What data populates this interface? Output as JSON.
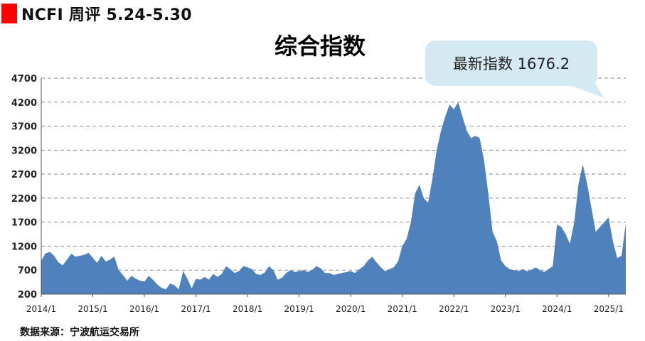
{
  "header": {
    "title": "NCFI 周评 5.24-5.30"
  },
  "callout": {
    "text": "最新指数 1676.2"
  },
  "source": "数据来源：宁波航运交易所",
  "colors": {
    "area": "#4f81bd",
    "marker": "#ff0000",
    "callout_bg": "#d5e9f3",
    "grid": "#888888"
  },
  "chart_data": {
    "type": "area",
    "title": "综合指数",
    "xlabel": "",
    "ylabel": "",
    "ylim": [
      200,
      4700
    ],
    "yticks": [
      200,
      700,
      1200,
      1700,
      2200,
      2700,
      3200,
      3700,
      4200,
      4700
    ],
    "xticks": [
      "2014/1",
      "2015/1",
      "2016/1",
      "2017/1",
      "2018/1",
      "2019/1",
      "2020/1",
      "2021/1",
      "2022/1",
      "2023/1",
      "2024/1",
      "2025/1"
    ],
    "grid": "horizontal dashed",
    "x_range": [
      "2014/1",
      "2025/5"
    ],
    "series": [
      {
        "values": [
          [
            "2014/1",
            900
          ],
          [
            "2014/2",
            1050
          ],
          [
            "2014/3",
            1080
          ],
          [
            "2014/4",
            1000
          ],
          [
            "2014/5",
            860
          ],
          [
            "2014/6",
            800
          ],
          [
            "2014/7",
            920
          ],
          [
            "2014/8",
            1040
          ],
          [
            "2014/9",
            980
          ],
          [
            "2014/10",
            1000
          ],
          [
            "2014/11",
            1020
          ],
          [
            "2014/12",
            1060
          ],
          [
            "2015/1",
            960
          ],
          [
            "2015/2",
            850
          ],
          [
            "2015/3",
            1000
          ],
          [
            "2015/4",
            880
          ],
          [
            "2015/5",
            920
          ],
          [
            "2015/6",
            980
          ],
          [
            "2015/7",
            700
          ],
          [
            "2015/8",
            600
          ],
          [
            "2015/9",
            480
          ],
          [
            "2015/10",
            580
          ],
          [
            "2015/11",
            520
          ],
          [
            "2015/12",
            480
          ],
          [
            "2016/1",
            460
          ],
          [
            "2016/2",
            580
          ],
          [
            "2016/3",
            500
          ],
          [
            "2016/4",
            400
          ],
          [
            "2016/5",
            330
          ],
          [
            "2016/6",
            300
          ],
          [
            "2016/7",
            420
          ],
          [
            "2016/8",
            380
          ],
          [
            "2016/9",
            300
          ],
          [
            "2016/10",
            680
          ],
          [
            "2016/11",
            520
          ],
          [
            "2016/12",
            320
          ],
          [
            "2017/1",
            520
          ],
          [
            "2017/2",
            500
          ],
          [
            "2017/3",
            560
          ],
          [
            "2017/4",
            500
          ],
          [
            "2017/5",
            620
          ],
          [
            "2017/6",
            560
          ],
          [
            "2017/7",
            620
          ],
          [
            "2017/8",
            780
          ],
          [
            "2017/9",
            720
          ],
          [
            "2017/10",
            640
          ],
          [
            "2017/11",
            680
          ],
          [
            "2017/12",
            780
          ],
          [
            "2018/1",
            760
          ],
          [
            "2018/2",
            720
          ],
          [
            "2018/3",
            620
          ],
          [
            "2018/4",
            600
          ],
          [
            "2018/5",
            650
          ],
          [
            "2018/6",
            780
          ],
          [
            "2018/7",
            700
          ],
          [
            "2018/8",
            500
          ],
          [
            "2018/9",
            540
          ],
          [
            "2018/10",
            640
          ],
          [
            "2018/11",
            700
          ],
          [
            "2018/12",
            660
          ],
          [
            "2019/1",
            680
          ],
          [
            "2019/2",
            700
          ],
          [
            "2019/3",
            660
          ],
          [
            "2019/4",
            700
          ],
          [
            "2019/5",
            780
          ],
          [
            "2019/6",
            740
          ],
          [
            "2019/7",
            640
          ],
          [
            "2019/8",
            640
          ],
          [
            "2019/9",
            600
          ],
          [
            "2019/10",
            620
          ],
          [
            "2019/11",
            640
          ],
          [
            "2019/12",
            660
          ],
          [
            "2020/1",
            680
          ],
          [
            "2020/2",
            640
          ],
          [
            "2020/3",
            720
          ],
          [
            "2020/4",
            780
          ],
          [
            "2020/5",
            900
          ],
          [
            "2020/6",
            980
          ],
          [
            "2020/7",
            860
          ],
          [
            "2020/8",
            760
          ],
          [
            "2020/9",
            680
          ],
          [
            "2020/10",
            720
          ],
          [
            "2020/11",
            760
          ],
          [
            "2020/12",
            880
          ],
          [
            "2021/1",
            1200
          ],
          [
            "2021/2",
            1350
          ],
          [
            "2021/3",
            1700
          ],
          [
            "2021/4",
            2300
          ],
          [
            "2021/5",
            2480
          ],
          [
            "2021/6",
            2200
          ],
          [
            "2021/7",
            2100
          ],
          [
            "2021/8",
            2600
          ],
          [
            "2021/9",
            3200
          ],
          [
            "2021/10",
            3600
          ],
          [
            "2021/11",
            3900
          ],
          [
            "2021/12",
            4150
          ],
          [
            "2022/1",
            4050
          ],
          [
            "2022/2",
            4200
          ],
          [
            "2022/3",
            3900
          ],
          [
            "2022/4",
            3600
          ],
          [
            "2022/5",
            3450
          ],
          [
            "2022/6",
            3500
          ],
          [
            "2022/7",
            3450
          ],
          [
            "2022/8",
            3000
          ],
          [
            "2022/9",
            2300
          ],
          [
            "2022/10",
            1500
          ],
          [
            "2022/11",
            1300
          ],
          [
            "2022/12",
            900
          ],
          [
            "2023/1",
            780
          ],
          [
            "2023/2",
            720
          ],
          [
            "2023/3",
            700
          ],
          [
            "2023/4",
            680
          ],
          [
            "2023/5",
            720
          ],
          [
            "2023/6",
            680
          ],
          [
            "2023/7",
            700
          ],
          [
            "2023/8",
            760
          ],
          [
            "2023/9",
            700
          ],
          [
            "2023/10",
            660
          ],
          [
            "2023/11",
            720
          ],
          [
            "2023/12",
            780
          ],
          [
            "2024/1",
            1650
          ],
          [
            "2024/2",
            1600
          ],
          [
            "2024/3",
            1450
          ],
          [
            "2024/4",
            1250
          ],
          [
            "2024/5",
            1700
          ],
          [
            "2024/6",
            2500
          ],
          [
            "2024/7",
            2900
          ],
          [
            "2024/8",
            2500
          ],
          [
            "2024/9",
            2000
          ],
          [
            "2024/10",
            1500
          ],
          [
            "2024/11",
            1600
          ],
          [
            "2024/12",
            1700
          ],
          [
            "2025/1",
            1800
          ],
          [
            "2025/2",
            1300
          ],
          [
            "2025/3",
            950
          ],
          [
            "2025/4",
            1000
          ],
          [
            "2025/5",
            1676
          ]
        ]
      }
    ],
    "annotation": "最新指数 1676.2"
  }
}
